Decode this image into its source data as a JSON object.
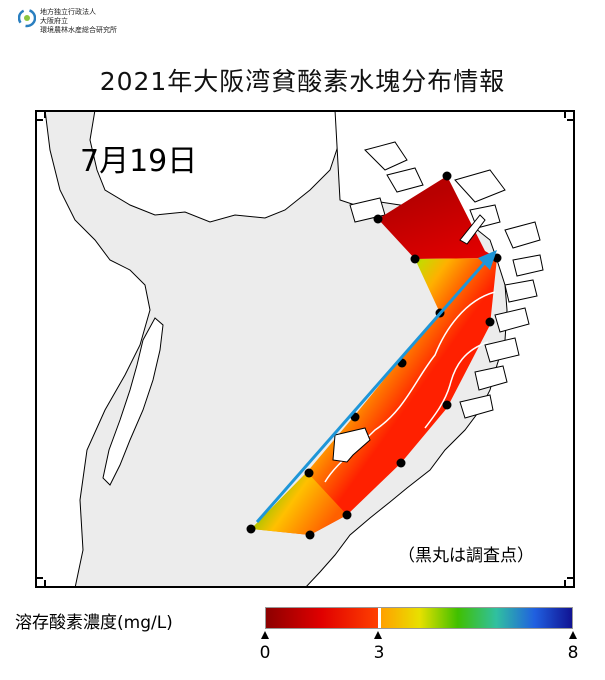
{
  "org": {
    "line1": "地方独立行政法人",
    "line2": "大阪府立",
    "line3": "環境農林水産総合研究所"
  },
  "title": "2021年大阪湾貧酸素水塊分布情報",
  "date_label": "7月19日",
  "note": "（黒丸は調査点）",
  "legend": {
    "title": "溶存酸素濃度(mg/L)",
    "ticks": [
      "0",
      "3",
      "8"
    ],
    "colors": {
      "low": "#8b0000",
      "mid": "#ff3000",
      "threshold": "#ffffff",
      "orange": "#ffa000",
      "yellow": "#e8e000",
      "green": "#30c000",
      "cyan": "#30c0a0",
      "blue": "#2040e0",
      "high": "#101090"
    }
  },
  "map": {
    "background": "#ececec",
    "land": "#ffffff",
    "arrow_color": "#1e96d8"
  }
}
